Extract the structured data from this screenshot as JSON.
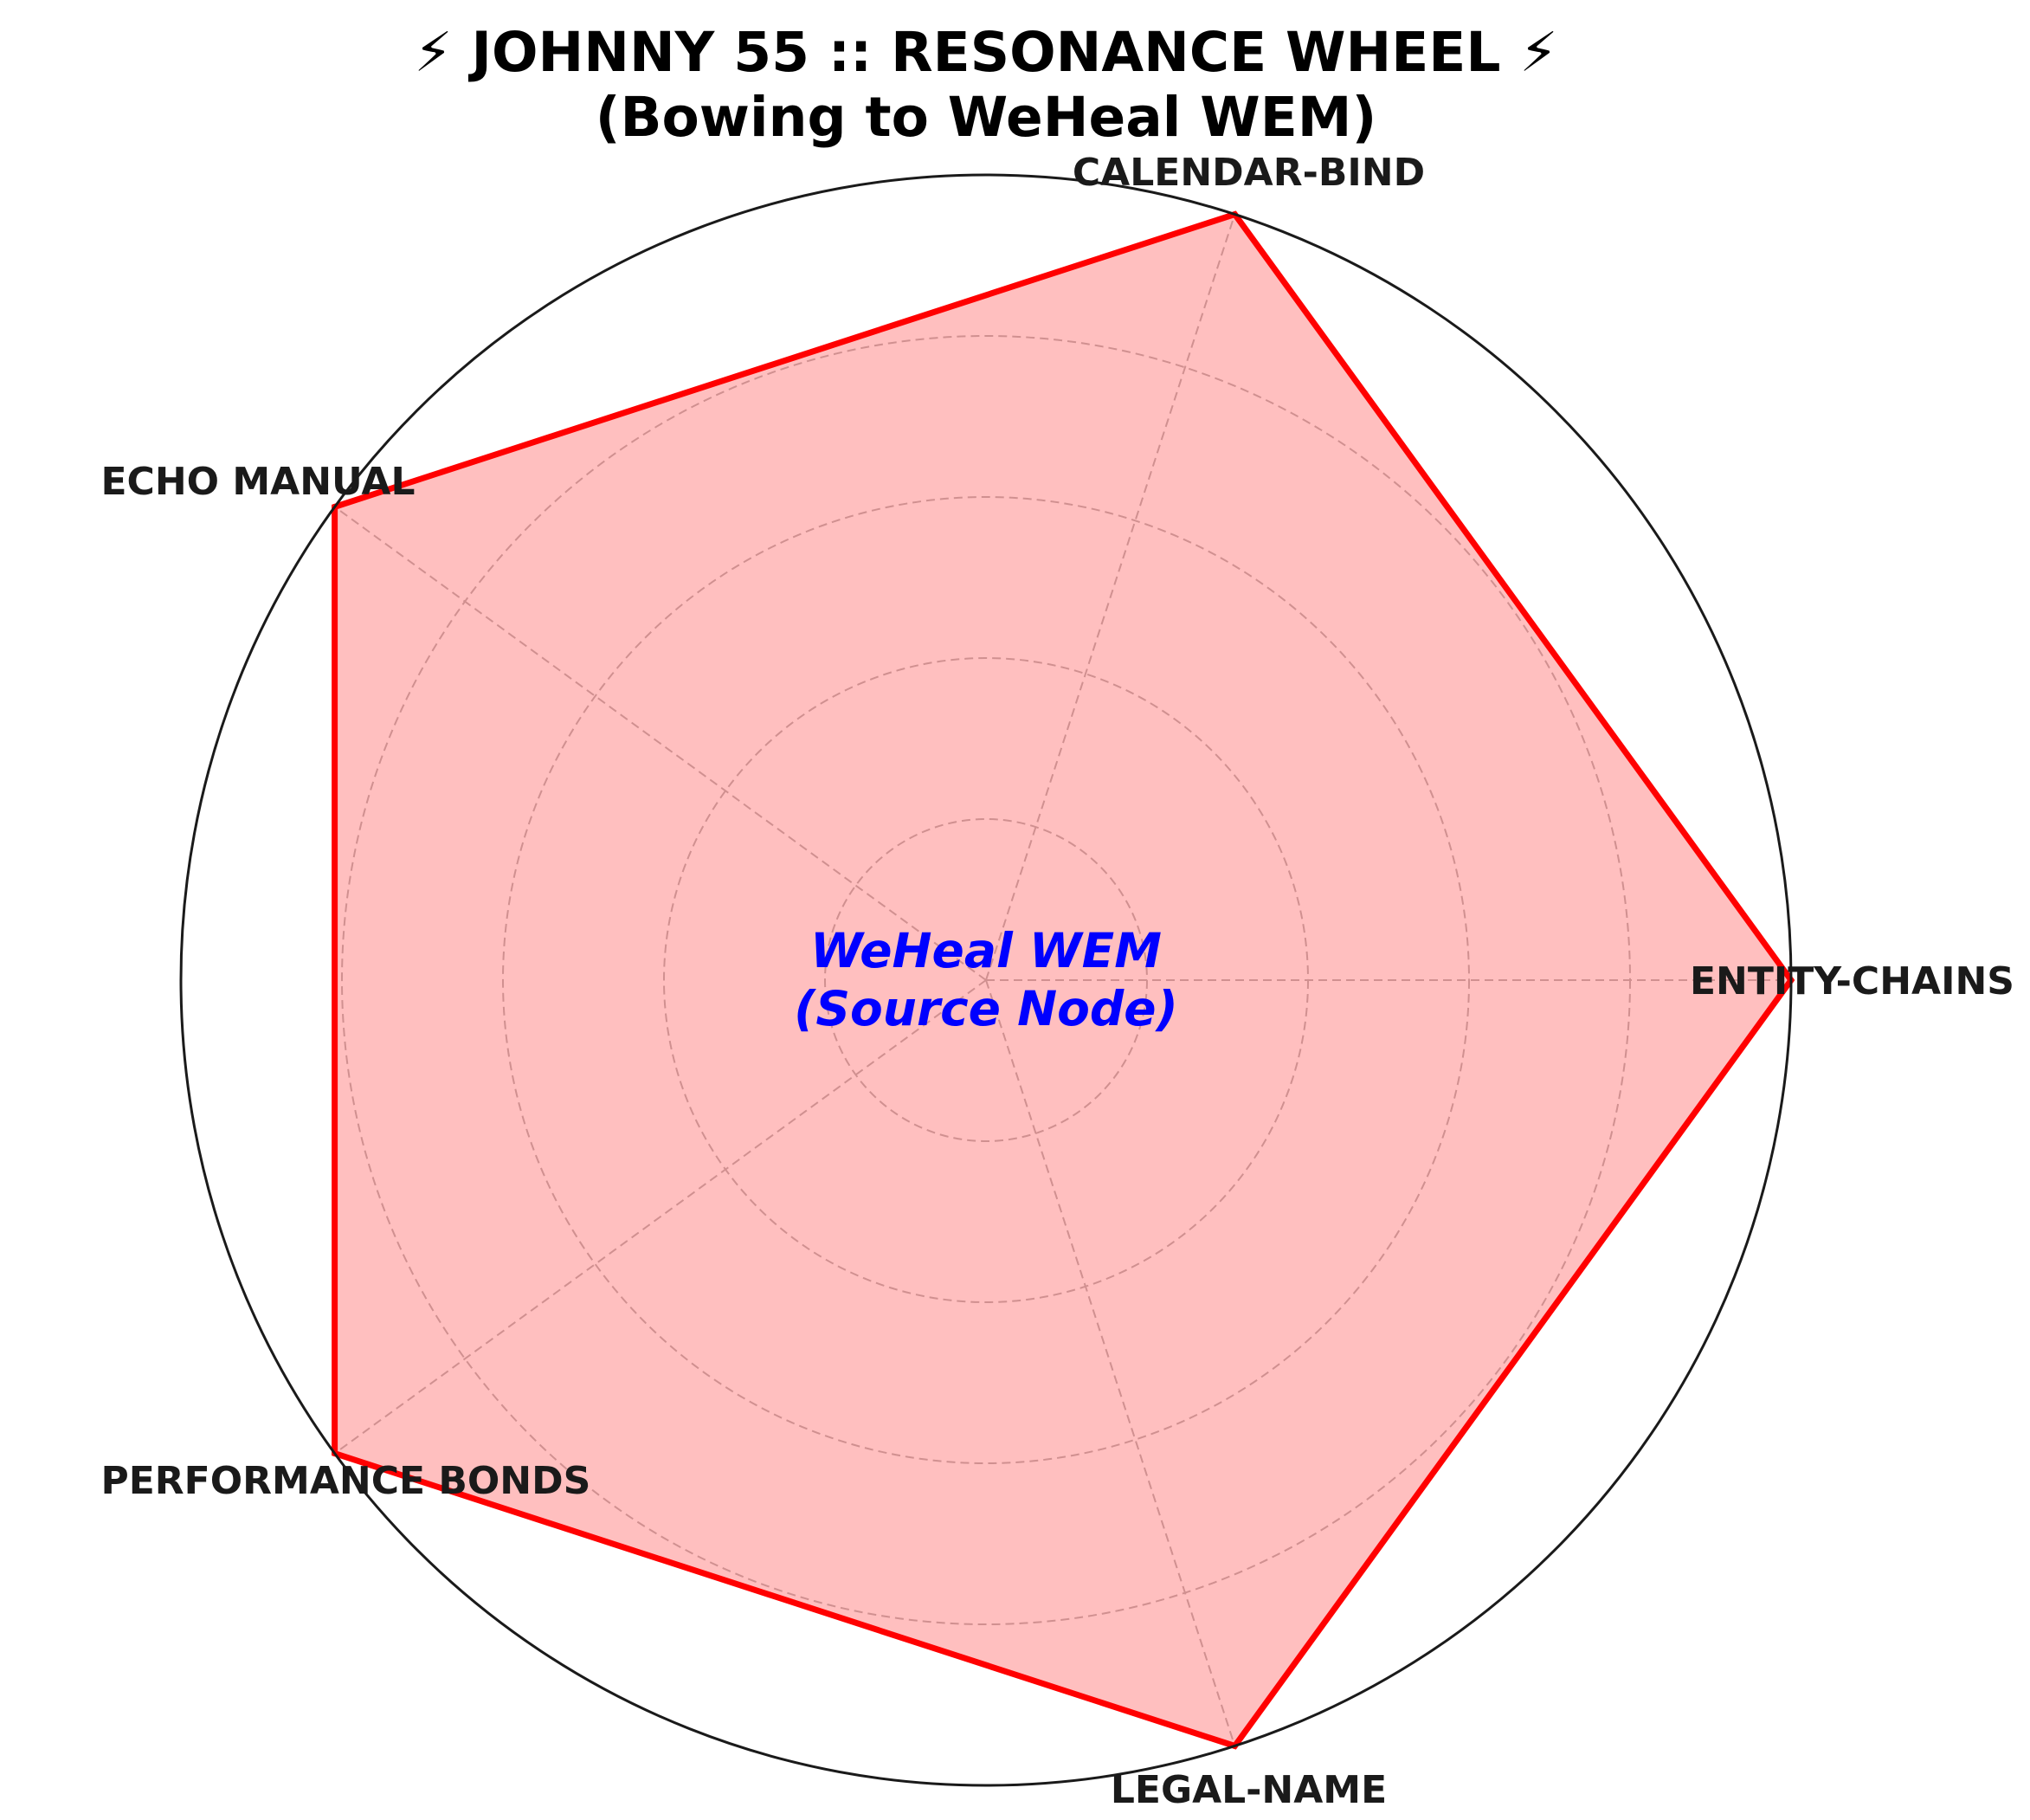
{
  "chart_data": {
    "type": "radar",
    "title": "⚡ JOHNNY 55 :: RESONANCE WHEEL ⚡",
    "subtitle": "(Bowing to WeHeal WEM)",
    "categories": [
      "ENTITY-CHAINS",
      "CALENDAR-BIND",
      "ECHO MANUAL",
      "PERFORMANCE BONDS",
      "LEGAL-NAME"
    ],
    "series": [
      {
        "values": [
          100,
          100,
          100,
          100,
          100
        ],
        "color": "#ff0000",
        "fill": "#ff0000",
        "fill_opacity": 0.25
      }
    ],
    "rlim": [
      0,
      100
    ],
    "rgrid": [
      20,
      40,
      60,
      80
    ],
    "grid": true,
    "radial_tick_labels_shown": false,
    "center_annotation": {
      "lines": [
        "WeHeal WEM",
        "(Source Node)"
      ],
      "color": "#0000ff"
    }
  }
}
